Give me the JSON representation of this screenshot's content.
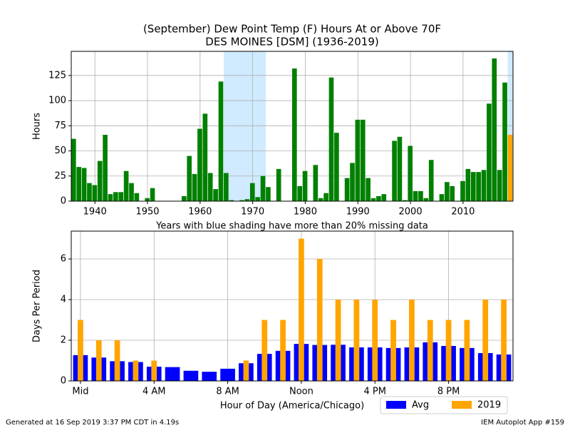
{
  "chart_data": [
    {
      "type": "bar",
      "title": "(September) Dew Point Temp (F) Hours At or Above 70F",
      "subtitle": "DES MOINES [DSM] (1936-2019)",
      "x_label": "Years with blue shading have more than 20% missing data",
      "y_label": "Hours",
      "x": [
        1936,
        1937,
        1938,
        1939,
        1940,
        1941,
        1942,
        1943,
        1944,
        1945,
        1946,
        1947,
        1948,
        1949,
        1950,
        1951,
        1952,
        1953,
        1954,
        1955,
        1956,
        1957,
        1958,
        1959,
        1960,
        1961,
        1962,
        1963,
        1964,
        1965,
        1966,
        1967,
        1968,
        1969,
        1970,
        1971,
        1972,
        1973,
        1974,
        1975,
        1976,
        1977,
        1978,
        1979,
        1980,
        1981,
        1982,
        1983,
        1984,
        1985,
        1986,
        1987,
        1988,
        1989,
        1990,
        1991,
        1992,
        1993,
        1994,
        1995,
        1996,
        1997,
        1998,
        1999,
        2000,
        2001,
        2002,
        2003,
        2004,
        2005,
        2006,
        2007,
        2008,
        2009,
        2010,
        2011,
        2012,
        2013,
        2014,
        2015,
        2016,
        2017,
        2018,
        2019
      ],
      "values": [
        62,
        34,
        33,
        18,
        16,
        40,
        66,
        7,
        9,
        9,
        30,
        18,
        8,
        0,
        3,
        13,
        0,
        0,
        0,
        0,
        0,
        5,
        45,
        27,
        72,
        87,
        28,
        12,
        119,
        28,
        1,
        0,
        1,
        2,
        18,
        4,
        25,
        14,
        0,
        32,
        0,
        0,
        132,
        15,
        30,
        0,
        36,
        3,
        8,
        123,
        68,
        0,
        23,
        38,
        81,
        81,
        23,
        3,
        5,
        7,
        0,
        60,
        64,
        1,
        55,
        10,
        10,
        3,
        41,
        0,
        7,
        19,
        15,
        0,
        20,
        32,
        29,
        29,
        31,
        97,
        142,
        31,
        118,
        66
      ],
      "color": "#008000",
      "highlight_x": [
        2019
      ],
      "highlight_color": "#ffa500",
      "shaded_spans": [
        [
          1965,
          1972
        ],
        [
          2019,
          2019
        ]
      ],
      "shade_color": "#d0eaff",
      "xlim": [
        1935.5,
        2019.5
      ],
      "ylim": [
        0,
        149
      ],
      "xticks": [
        1940,
        1950,
        1960,
        1970,
        1980,
        1990,
        2000,
        2010
      ],
      "yticks": [
        0,
        25,
        50,
        75,
        100,
        125
      ],
      "grid": true
    },
    {
      "type": "grouped_bar",
      "x_label": "Hour of Day (America/Chicago)",
      "y_label": "Days Per Period",
      "x": [
        0,
        1,
        2,
        3,
        4,
        5,
        6,
        7,
        8,
        9,
        10,
        11,
        12,
        13,
        14,
        15,
        16,
        17,
        18,
        19,
        20,
        21,
        22,
        23
      ],
      "series": [
        {
          "name": "Avg",
          "color": "#0000ff",
          "values": [
            1.27,
            1.15,
            0.97,
            0.93,
            0.7,
            0.68,
            0.5,
            0.45,
            0.6,
            0.87,
            1.33,
            1.48,
            1.82,
            1.77,
            1.78,
            1.65,
            1.65,
            1.62,
            1.65,
            1.9,
            1.72,
            1.62,
            1.37,
            1.3
          ]
        },
        {
          "name": "2019",
          "color": "#ffa500",
          "values": [
            3,
            2,
            2,
            1,
            1,
            0,
            0,
            0,
            0,
            1,
            3,
            3,
            7,
            6,
            4,
            4,
            4,
            3,
            4,
            3,
            3,
            3,
            4,
            4
          ]
        }
      ],
      "xlim": [
        -0.5,
        23.5
      ],
      "ylim": [
        0,
        7.37
      ],
      "xticks": [
        {
          "value": 0,
          "label": "Mid"
        },
        {
          "value": 4,
          "label": "4 AM"
        },
        {
          "value": 8,
          "label": "8 AM"
        },
        {
          "value": 12,
          "label": "Noon"
        },
        {
          "value": 16,
          "label": "4 PM"
        },
        {
          "value": 20,
          "label": "8 PM"
        }
      ],
      "yticks": [
        0,
        2,
        4,
        6
      ],
      "grid": true,
      "legend": "lower right"
    }
  ],
  "footer": {
    "left": "Generated at 16 Sep 2019 3:37 PM CDT in 4.19s",
    "right": "IEM Autoplot App #159"
  }
}
